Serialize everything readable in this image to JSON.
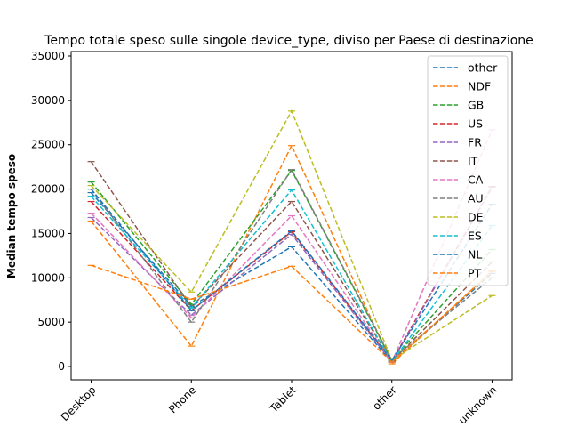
{
  "chart_data": {
    "type": "line",
    "title": "Tempo totale speso sulle singole device_type, diviso per Paese di destinazione",
    "xlabel": "",
    "ylabel": "Median tempo speso",
    "categories": [
      "Desktop",
      "Phone",
      "Tablet",
      "other",
      "unknown"
    ],
    "ylim": [
      -1500,
      35500
    ],
    "yticks": [
      0,
      5000,
      10000,
      15000,
      20000,
      25000,
      30000,
      35000
    ],
    "grid": false,
    "legend_position": "top-right",
    "series": [
      {
        "name": "other",
        "color": "#1f77b4",
        "values": [
          19600,
          6800,
          13500,
          500,
          10500
        ]
      },
      {
        "name": "NDF",
        "color": "#ff7f0e",
        "values": [
          16400,
          2300,
          24900,
          300,
          10800
        ]
      },
      {
        "name": "GB",
        "color": "#2ca02c",
        "values": [
          20800,
          7000,
          22100,
          700,
          13200
        ]
      },
      {
        "name": "US",
        "color": "#d62728",
        "values": [
          18600,
          6300,
          15200,
          600,
          20300
        ]
      },
      {
        "name": "FR",
        "color": "#9467bd",
        "values": [
          16800,
          5800,
          14900,
          500,
          20200
        ]
      },
      {
        "name": "IT",
        "color": "#8c564b",
        "values": [
          23100,
          6700,
          18600,
          600,
          11800
        ]
      },
      {
        "name": "CA",
        "color": "#e377c2",
        "values": [
          17300,
          5500,
          17000,
          500,
          26700
        ]
      },
      {
        "name": "AU",
        "color": "#7f7f7f",
        "values": [
          20000,
          5000,
          22200,
          800,
          10000
        ]
      },
      {
        "name": "DE",
        "color": "#bcbd22",
        "values": [
          20400,
          8400,
          28800,
          700,
          8000
        ]
      },
      {
        "name": "ES",
        "color": "#17becf",
        "values": [
          19200,
          6600,
          19900,
          500,
          15900
        ]
      },
      {
        "name": "NL",
        "color": "#1f77b4",
        "values": [
          20000,
          6300,
          15300,
          700,
          18300
        ]
      },
      {
        "name": "PT",
        "color": "#ff7f0e",
        "values": [
          11400,
          7600,
          11300,
          500,
          10700
        ]
      }
    ]
  }
}
